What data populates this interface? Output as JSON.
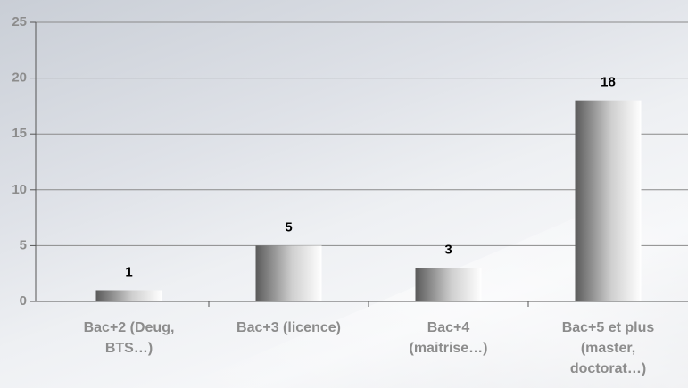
{
  "chart_data": {
    "type": "bar",
    "categories": [
      "Bac+2 (Deug, BTS…)",
      "Bac+3 (licence)",
      "Bac+4 (maitrise…)",
      "Bac+5 et plus (master, doctorat…)"
    ],
    "values": [
      1,
      5,
      3,
      18
    ],
    "ylim": [
      0,
      25
    ],
    "yticks": [
      0,
      5,
      10,
      15,
      20,
      25
    ],
    "grid": true
  }
}
